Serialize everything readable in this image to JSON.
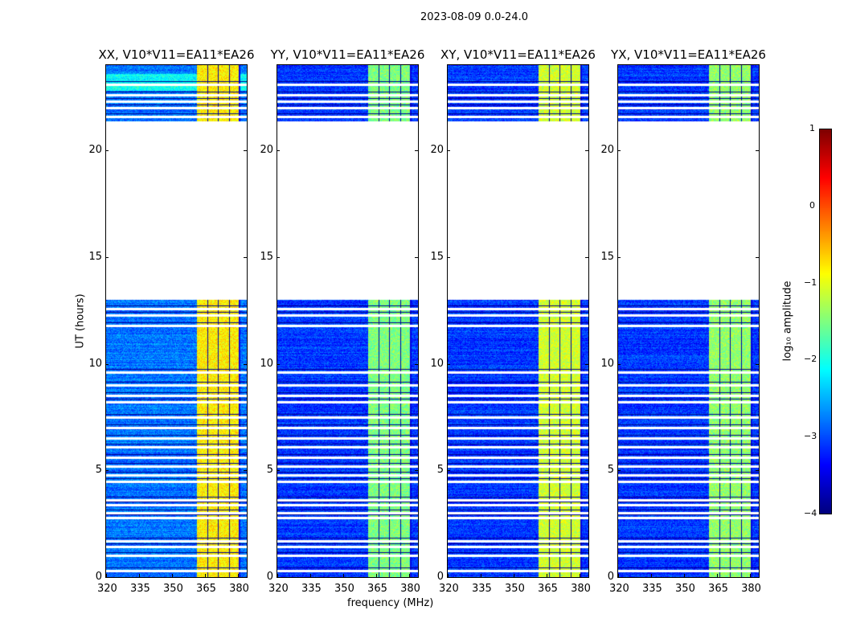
{
  "chart_data": {
    "type": "heatmap",
    "title": "2023-08-09 0.0-24.0",
    "xlabel": "frequency (MHz)",
    "ylabel": "UT (hours)",
    "xlim": [
      320,
      384
    ],
    "ylim": [
      0,
      24
    ],
    "xticks": [
      "320",
      "335",
      "350",
      "365",
      "380"
    ],
    "xtick_values": [
      320,
      335,
      350,
      365,
      380
    ],
    "yticks": [
      "0",
      "5",
      "10",
      "15",
      "20"
    ],
    "ytick_values": [
      0,
      5,
      10,
      15,
      20
    ],
    "panels": [
      {
        "title": "XX, V10*V11=EA11*EA26",
        "background_level": -2.8,
        "band_level": -0.8
      },
      {
        "title": "YY, V10*V11=EA11*EA26",
        "background_level": -3.1,
        "band_level": -1.5
      },
      {
        "title": "XY, V10*V11=EA11*EA26",
        "background_level": -3.1,
        "band_level": -1.1
      },
      {
        "title": "YX, V10*V11=EA11*EA26",
        "background_level": -3.1,
        "band_level": -1.4
      }
    ],
    "data_gap_hours": [
      13.0,
      21.4
    ],
    "rfi_band_mhz": [
      361,
      380
    ],
    "band_notches_mhz": [
      366,
      371,
      376
    ],
    "flagged_rows_hours": [
      0.3,
      1.0,
      1.45,
      1.7,
      2.8,
      3.0,
      3.4,
      3.6,
      4.5,
      4.8,
      5.2,
      5.6,
      6.1,
      6.5,
      7.0,
      7.5,
      8.2,
      8.5,
      9.0,
      9.6,
      11.8,
      12.3,
      12.6,
      21.6,
      22.0,
      22.3,
      22.6,
      23.1
    ],
    "colorbar": {
      "label": "log₁₀ amplitude",
      "range": [
        -4,
        1
      ],
      "ticks": [
        "1",
        "0",
        "−1",
        "−2",
        "−3",
        "−4"
      ],
      "tick_values": [
        1,
        0,
        -1,
        -2,
        -3,
        -4
      ],
      "colormap": "jet"
    }
  }
}
